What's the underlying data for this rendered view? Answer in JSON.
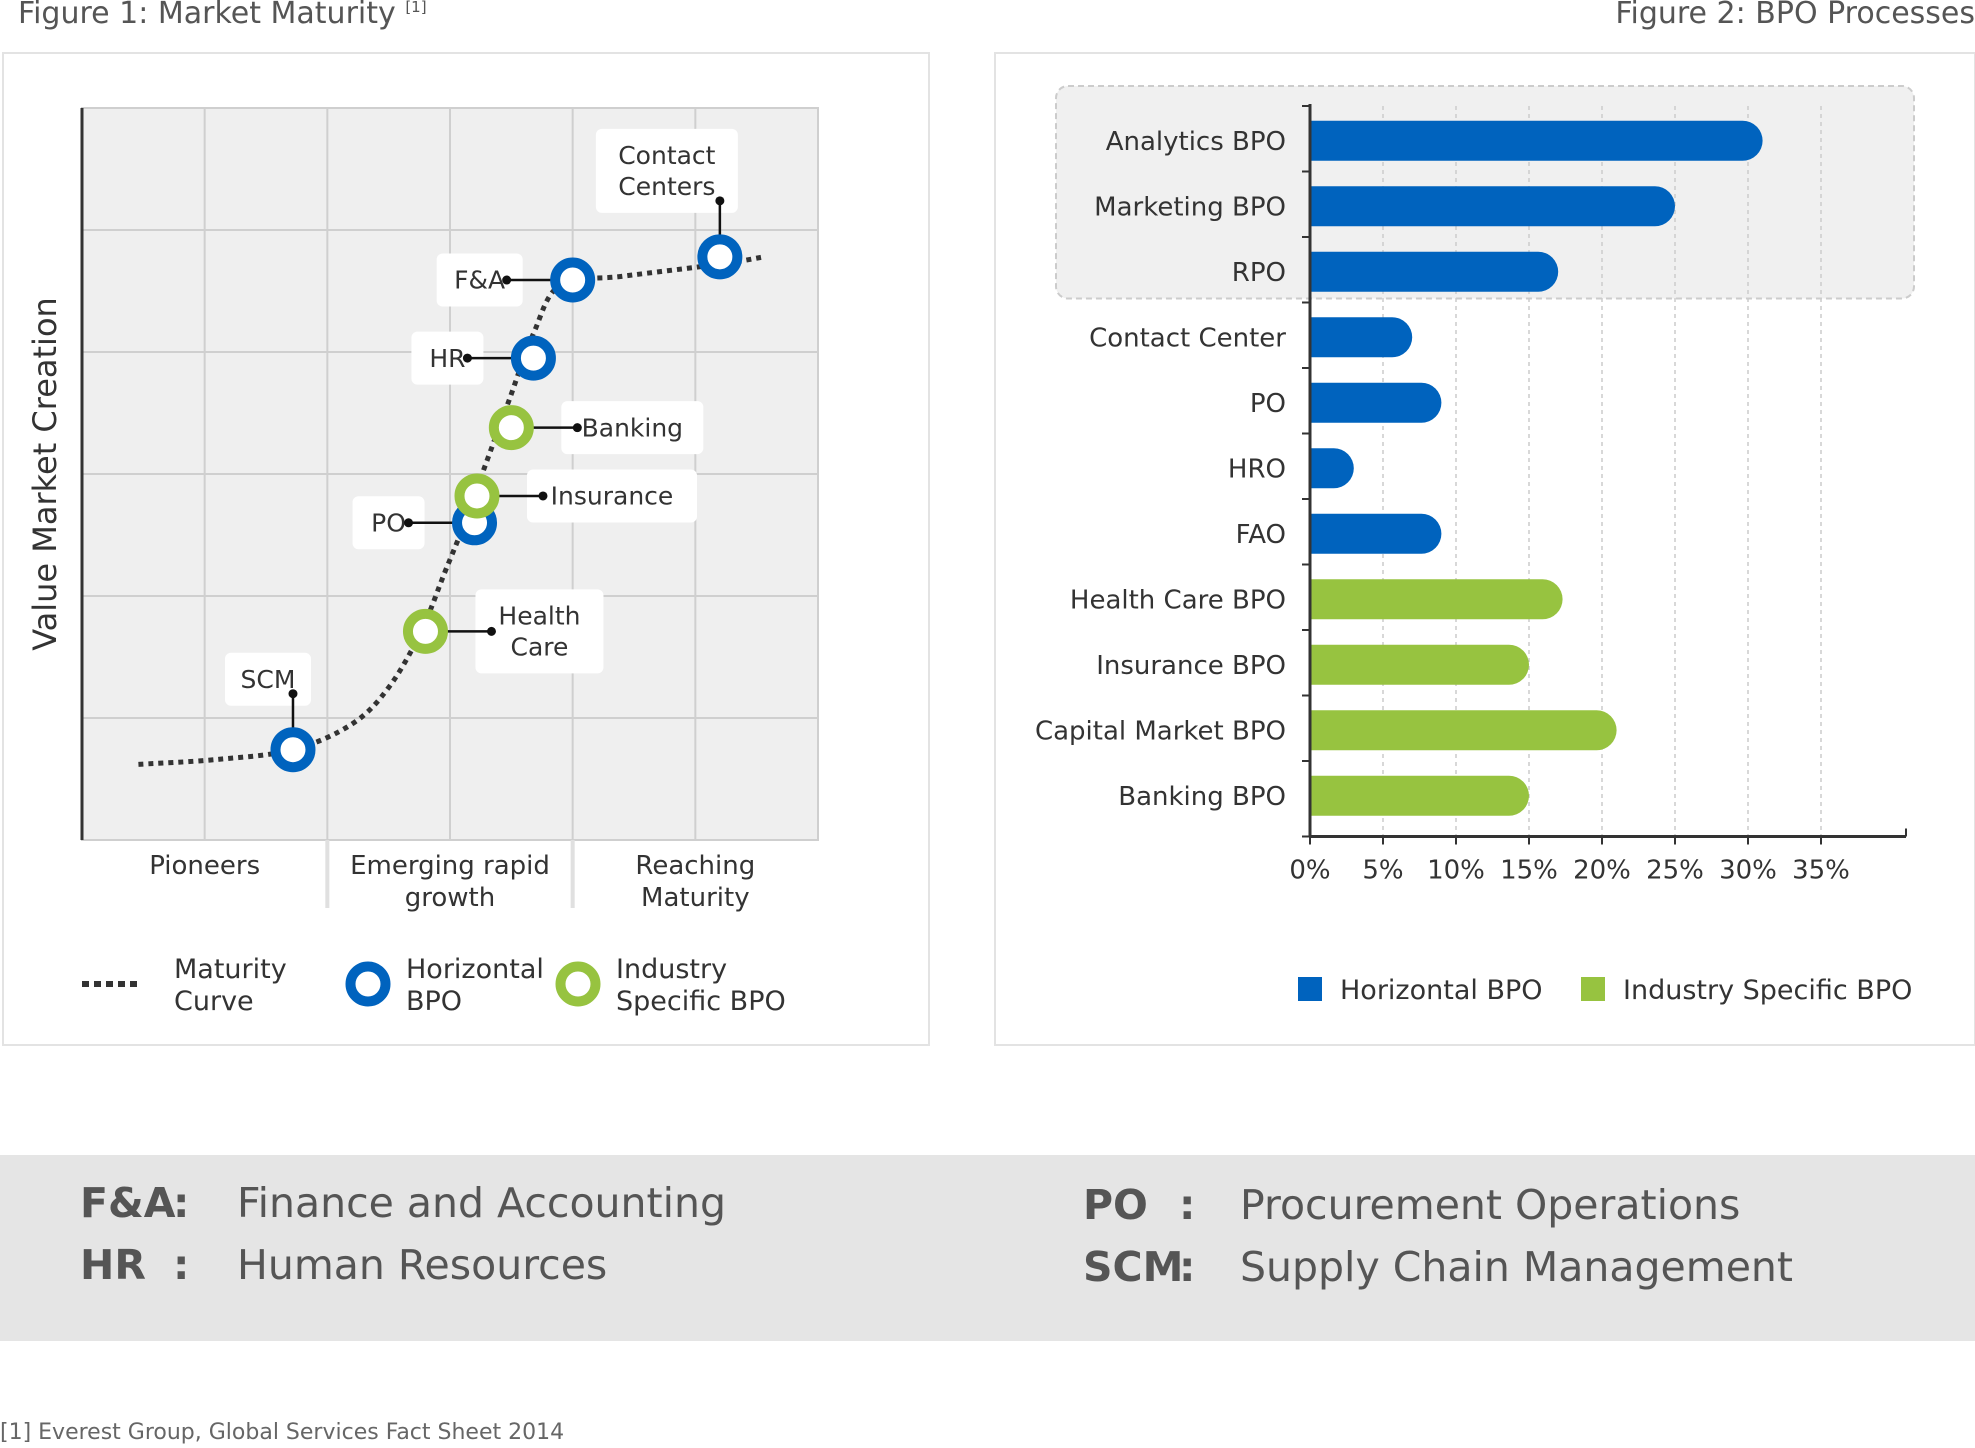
{
  "figure1": {
    "title": "Figure 1: Market Maturity",
    "title_ref": "[1]"
  },
  "figure2": {
    "title": "Figure 2: BPO Processes"
  },
  "chart_data": [
    {
      "type": "scatter",
      "ylabel": "Value Market Creation",
      "x_stages": [
        {
          "lines": [
            "Pioneers"
          ]
        },
        {
          "lines": [
            "Emerging rapid",
            "growth"
          ]
        },
        {
          "lines": [
            "Reaching",
            "Maturity"
          ]
        }
      ],
      "xlim": [
        0,
        3
      ],
      "ylim": [
        0,
        6
      ],
      "grid": true,
      "maturity_curve": [
        [
          0.23,
          0.62
        ],
        [
          0.55,
          0.66
        ],
        [
          0.86,
          0.74
        ],
        [
          1.1,
          0.95
        ],
        [
          1.25,
          1.25
        ],
        [
          1.38,
          1.7
        ],
        [
          1.48,
          2.2
        ],
        [
          1.56,
          2.6
        ],
        [
          1.64,
          3.05
        ],
        [
          1.74,
          3.6
        ],
        [
          1.84,
          4.15
        ],
        [
          1.95,
          4.55
        ],
        [
          2.2,
          4.62
        ],
        [
          2.6,
          4.72
        ],
        [
          2.78,
          4.78
        ]
      ],
      "points": [
        {
          "label_lines": [
            "SCM"
          ],
          "category": "horizontal",
          "x": 0.86,
          "y": 0.74,
          "label_pos": "top"
        },
        {
          "label_lines": [
            "Health",
            "Care"
          ],
          "category": "industry",
          "x": 1.4,
          "y": 1.71,
          "label_pos": "right"
        },
        {
          "label_lines": [
            "PO"
          ],
          "category": "horizontal",
          "x": 1.6,
          "y": 2.6,
          "label_pos": "left"
        },
        {
          "label_lines": [
            "Insurance"
          ],
          "category": "industry",
          "x": 1.61,
          "y": 2.82,
          "label_pos": "right"
        },
        {
          "label_lines": [
            "Banking"
          ],
          "category": "industry",
          "x": 1.75,
          "y": 3.38,
          "label_pos": "right"
        },
        {
          "label_lines": [
            "HR"
          ],
          "category": "horizontal",
          "x": 1.84,
          "y": 3.95,
          "label_pos": "left"
        },
        {
          "label_lines": [
            "F&A"
          ],
          "category": "horizontal",
          "x": 2.0,
          "y": 4.59,
          "label_pos": "left"
        },
        {
          "label_lines": [
            "Contact",
            "Centers"
          ],
          "category": "horizontal",
          "x": 2.6,
          "y": 4.78,
          "label_pos": "top"
        }
      ],
      "legend": [
        {
          "key": "curve",
          "lines": [
            "Maturity",
            "Curve"
          ]
        },
        {
          "key": "horizontal",
          "lines": [
            "Horizontal",
            "BPO"
          ]
        },
        {
          "key": "industry",
          "lines": [
            "Industry",
            "Specific BPO"
          ]
        }
      ],
      "legend_position": "bottom",
      "colors": {
        "horizontal": "#0063be",
        "industry": "#97c340",
        "curve": "#333333"
      }
    },
    {
      "type": "bar",
      "orientation": "horizontal",
      "categories": [
        "Analytics BPO",
        "Marketing BPO",
        "RPO",
        "Contact Center",
        "PO",
        "HRO",
        "FAO",
        "Health Care BPO",
        "Insurance BPO",
        "Capital Market BPO",
        "Banking BPO"
      ],
      "values": [
        31,
        25,
        17,
        7,
        9,
        3,
        9,
        17.3,
        15,
        21,
        15
      ],
      "series_of": [
        "Horizontal BPO",
        "Horizontal BPO",
        "Horizontal BPO",
        "Horizontal BPO",
        "Horizontal BPO",
        "Horizontal BPO",
        "Horizontal BPO",
        "Industry Specific BPO",
        "Industry Specific BPO",
        "Industry Specific BPO",
        "Industry Specific BPO"
      ],
      "highlighted_categories": [
        "Analytics BPO",
        "Marketing BPO",
        "RPO"
      ],
      "xlim": [
        0,
        40
      ],
      "xticks": [
        0,
        5,
        10,
        15,
        20,
        25,
        30,
        35
      ],
      "xtick_labels": [
        "0%",
        "5%",
        "10%",
        "15%",
        "20%",
        "25%",
        "30%",
        "35%"
      ],
      "grid": true,
      "legend": [
        {
          "name": "Horizontal BPO",
          "color": "#0063be"
        },
        {
          "name": "Industry Specific BPO",
          "color": "#97c340"
        }
      ],
      "legend_position": "bottom-right"
    }
  ],
  "abbreviations": [
    {
      "key": "F&A",
      "colon": ":",
      "value": "Finance and Accounting"
    },
    {
      "key": "HR",
      "colon": ":",
      "value": "Human Resources"
    },
    {
      "key": "PO",
      "colon": ":",
      "value": "Procurement Operations"
    },
    {
      "key": "SCM",
      "colon": ":",
      "value": "Supply Chain Management"
    }
  ],
  "footnote": "[1] Everest Group, Global Services Fact Sheet 2014"
}
